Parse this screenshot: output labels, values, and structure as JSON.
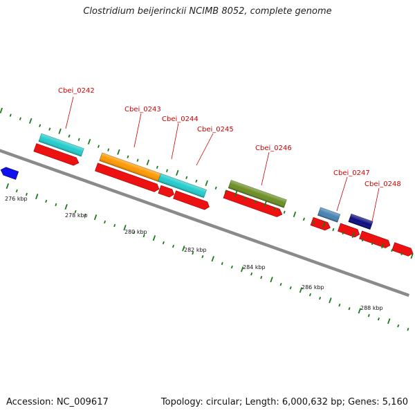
{
  "title": "Clostridium beijerinckii NCIMB 8052, complete genome",
  "footer": {
    "accession": "Accession: NC_009617",
    "topology": "Topology: circular; Length: 6,000,632 bp; Genes: 5,160"
  },
  "colors": {
    "backbone": "#8a8a8a",
    "tick": "#1a7a1a",
    "label": "#cc0000",
    "cds_red": "#ee1111",
    "cyan": "#22cccc",
    "orange": "#ff9900",
    "olive": "#6b8e23",
    "steelblue": "#4682b4",
    "navy": "#0a0a80",
    "blue": "#1010ee"
  },
  "gene_labels": [
    "Cbei_0242",
    "Cbei_0243",
    "Cbei_0244",
    "Cbei_0245",
    "Cbei_0246",
    "Cbei_0247",
    "Cbei_0248"
  ],
  "kbp_labels": [
    "276 kbp",
    "278 kbp",
    "280 kbp",
    "282 kbp",
    "284 kbp",
    "286 kbp",
    "288 kbp"
  ]
}
